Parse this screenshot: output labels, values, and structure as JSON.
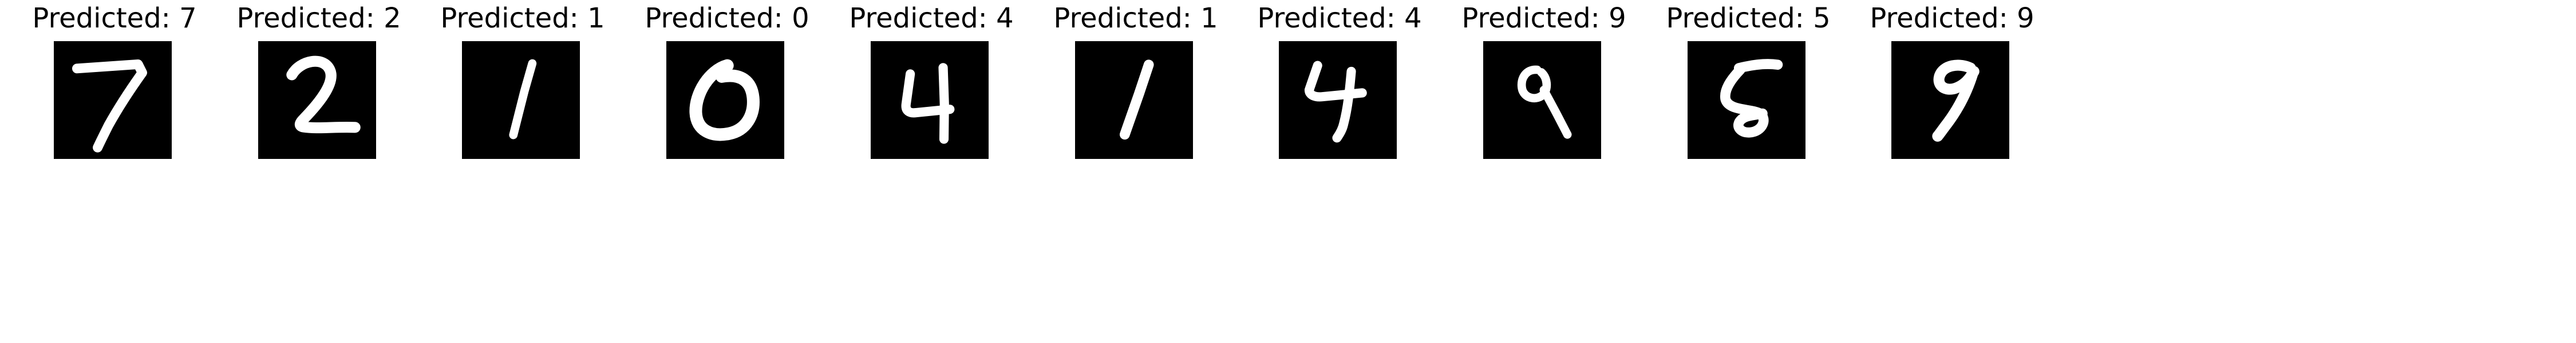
{
  "panels": [
    {
      "title": "Predicted: 7",
      "digit": "7"
    },
    {
      "title": "Predicted: 2",
      "digit": "2"
    },
    {
      "title": "Predicted: 1",
      "digit": "1"
    },
    {
      "title": "Predicted: 0",
      "digit": "0"
    },
    {
      "title": "Predicted: 4",
      "digit": "4"
    },
    {
      "title": "Predicted: 1",
      "digit": "1"
    },
    {
      "title": "Predicted: 4",
      "digit": "4"
    },
    {
      "title": "Predicted: 9",
      "digit": "9"
    },
    {
      "title": "Predicted: 5",
      "digit": "5"
    },
    {
      "title": "Predicted: 9",
      "digit": "9"
    }
  ],
  "colors": {
    "background": "#ffffff",
    "image_background": "#000000",
    "stroke": "#ffffff",
    "text": "#000000"
  }
}
